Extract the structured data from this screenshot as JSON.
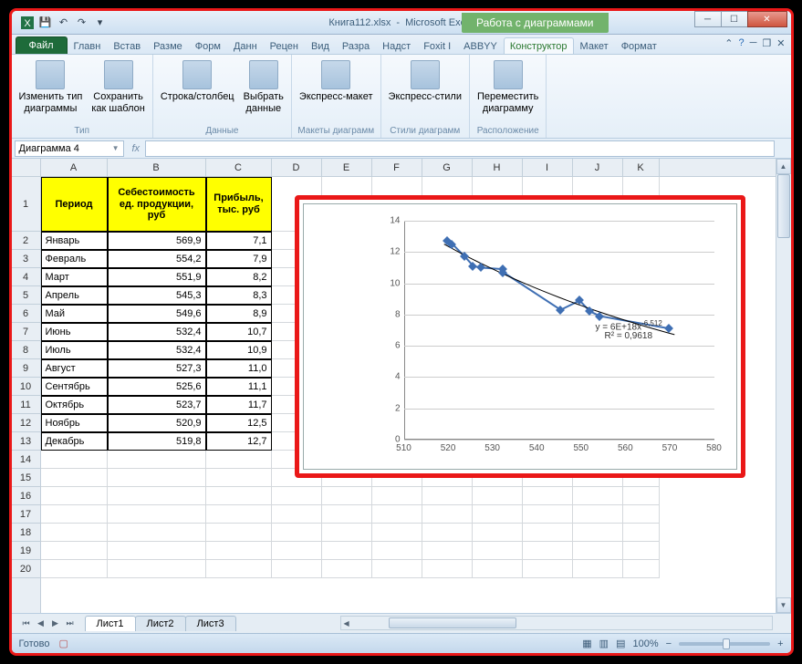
{
  "title": {
    "doc": "Книга112.xlsx",
    "app": "Microsoft Excel"
  },
  "chart_tools_label": "Работа с диаграммами",
  "tabs": [
    "Главн",
    "Встав",
    "Разме",
    "Форм",
    "Данн",
    "Рецен",
    "Вид",
    "Разра",
    "Надст",
    "Foxit I",
    "ABBYY",
    "Конструктор",
    "Макет",
    "Формат"
  ],
  "file_tab": "Файл",
  "ribbon": {
    "groups": [
      {
        "label": "Тип",
        "btns": [
          "Изменить тип\nдиаграммы",
          "Сохранить\nкак шаблон"
        ]
      },
      {
        "label": "Данные",
        "btns": [
          "Строка/столбец",
          "Выбрать\nданные"
        ]
      },
      {
        "label": "Макеты диаграмм",
        "btns": [
          "Экспресс-макет"
        ]
      },
      {
        "label": "Стили диаграмм",
        "btns": [
          "Экспресс-стили"
        ]
      },
      {
        "label": "Расположение",
        "btns": [
          "Переместить\nдиаграмму"
        ]
      }
    ]
  },
  "namebox": "Диаграмма 4",
  "columns": [
    {
      "l": "A",
      "w": 73
    },
    {
      "l": "B",
      "w": 108
    },
    {
      "l": "C",
      "w": 72
    },
    {
      "l": "D",
      "w": 55
    },
    {
      "l": "E",
      "w": 55
    },
    {
      "l": "F",
      "w": 55
    },
    {
      "l": "G",
      "w": 55
    },
    {
      "l": "H",
      "w": 55
    },
    {
      "l": "I",
      "w": 55
    },
    {
      "l": "J",
      "w": 55
    },
    {
      "l": "K",
      "w": 40
    }
  ],
  "headers": [
    "Период",
    "Себестоимость ед. продукции, руб",
    "Прибыль, тыс. руб"
  ],
  "rows": [
    [
      "Январь",
      "569,9",
      "7,1"
    ],
    [
      "Февраль",
      "554,2",
      "7,9"
    ],
    [
      "Март",
      "551,9",
      "8,2"
    ],
    [
      "Апрель",
      "545,3",
      "8,3"
    ],
    [
      "Май",
      "549,6",
      "8,9"
    ],
    [
      "Июнь",
      "532,4",
      "10,7"
    ],
    [
      "Июль",
      "532,4",
      "10,9"
    ],
    [
      "Август",
      "527,3",
      "11,0"
    ],
    [
      "Сентябрь",
      "525,6",
      "11,1"
    ],
    [
      "Октябрь",
      "523,7",
      "11,7"
    ],
    [
      "Ноябрь",
      "520,9",
      "12,5"
    ],
    [
      "Декабрь",
      "519,8",
      "12,7"
    ]
  ],
  "chart": {
    "yticks": [
      0,
      2,
      4,
      6,
      8,
      10,
      12,
      14
    ],
    "xticks": [
      510,
      520,
      530,
      540,
      550,
      560,
      570,
      580
    ],
    "ymin": 0,
    "ymax": 14,
    "xmin": 510,
    "xmax": 580,
    "points": [
      {
        "x": 519.8,
        "y": 12.7
      },
      {
        "x": 520.9,
        "y": 12.5
      },
      {
        "x": 523.7,
        "y": 11.7
      },
      {
        "x": 525.6,
        "y": 11.1
      },
      {
        "x": 527.3,
        "y": 11.0
      },
      {
        "x": 532.4,
        "y": 10.9
      },
      {
        "x": 532.4,
        "y": 10.7
      },
      {
        "x": 545.3,
        "y": 8.3
      },
      {
        "x": 549.6,
        "y": 8.9
      },
      {
        "x": 551.9,
        "y": 8.2
      },
      {
        "x": 554.2,
        "y": 7.9
      },
      {
        "x": 569.9,
        "y": 7.1
      }
    ],
    "line_color": "#3f6fb3",
    "trend_color": "#000",
    "eq1": "y = 6E+18x",
    "eq1_sup": "-6,512",
    "eq2": "R² = 0,9618"
  },
  "sheets": [
    "Лист1",
    "Лист2",
    "Лист3"
  ],
  "status": "Готово",
  "zoom": "100%"
}
